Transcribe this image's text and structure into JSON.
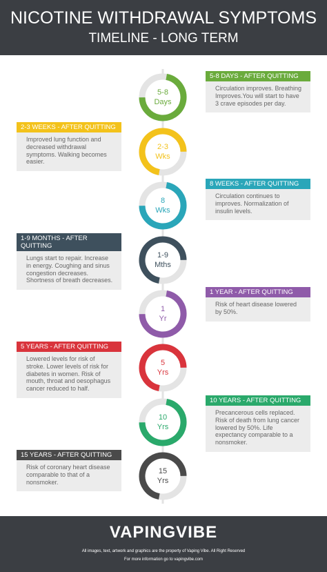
{
  "header": {
    "title": "NICOTINE WITHDRAWAL SYMPTOMS",
    "subtitle": "TIMELINE - LONG TERM"
  },
  "milestones": [
    {
      "circle_lines": [
        "5-8",
        "Days"
      ],
      "heading": "5-8 DAYS - AFTER QUITTING",
      "text": "Circulation improves. Breathing Improves.You will start to have 3 crave episodes per day."
    },
    {
      "circle_lines": [
        "2-3",
        "Wks"
      ],
      "heading": "2-3 WEEKS - AFTER QUITTING",
      "text": "Improved lung function and decreased withdrawal symptoms. Walking becomes easier."
    },
    {
      "circle_lines": [
        "8",
        "Wks"
      ],
      "heading": "8 WEEKS - AFTER QUITTING",
      "text": "Circulation continues to improves. Normalization of insulin levels."
    },
    {
      "circle_lines": [
        "1-9",
        "Mths"
      ],
      "heading": "1-9 MONTHS - AFTER QUITTING",
      "text": "Lungs start to repair. Increase in energy. Coughing and sinus congestion decreases. Shortness of breath decreases."
    },
    {
      "circle_lines": [
        "1",
        "Yr"
      ],
      "heading": "1 YEAR - AFTER QUITTING",
      "text": "Risk of heart disease lowered by 50%."
    },
    {
      "circle_lines": [
        "5",
        "Yrs"
      ],
      "heading": "5 YEARS - AFTER QUITTING",
      "text": "Lowered levels for risk of stroke. Lower levels of risk for diabetes in women. Risk of mouth, throat and oesophagus cancer reduced to half."
    },
    {
      "circle_lines": [
        "10",
        "Yrs"
      ],
      "heading": "10 YEARS - AFTER QUITTING",
      "text": "Precancerous cells replaced. Risk of death from lung cancer lowered by 50%. Life expectancy comparable to a nonsmoker."
    },
    {
      "circle_lines": [
        "15",
        "Yrs"
      ],
      "heading": "15 YEARS - AFTER QUITTING",
      "text": "Risk of coronary heart disease comparable to that of a nonsmoker."
    }
  ],
  "footer": {
    "brand": "VAPINGVIBE",
    "notice": "All images, text, artwork and graphics are the property of Vaping Vibe. All Right Reserved",
    "info": "For more information go to vapingvibe.com"
  }
}
